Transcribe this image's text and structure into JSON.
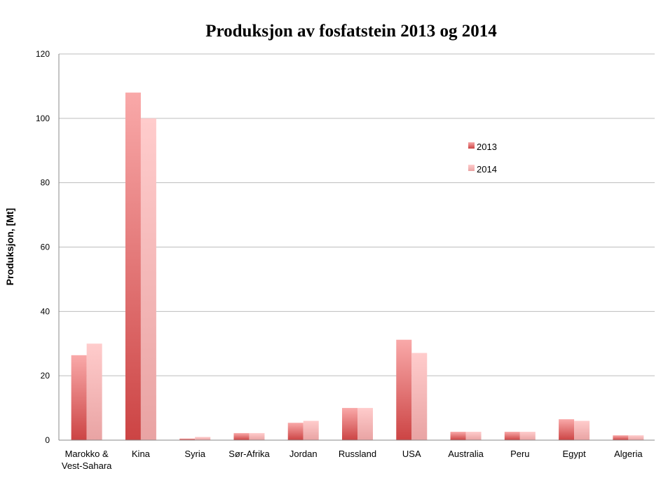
{
  "chart_data": {
    "type": "bar",
    "title": "Produksjon av fosfatstein 2013 og 2014",
    "xlabel": "",
    "ylabel": "Produksjon, [Mt]",
    "ylim": [
      0,
      120
    ],
    "yticks": [
      0,
      20,
      40,
      60,
      80,
      100,
      120
    ],
    "grid": true,
    "legend_position": "top-right",
    "categories": [
      [
        "Marokko &",
        "Vest-Sahara"
      ],
      [
        "Kina"
      ],
      [
        "Syria"
      ],
      [
        "Sør-Afrika"
      ],
      [
        "Jordan"
      ],
      [
        "Russland"
      ],
      [
        "USA"
      ],
      [
        "Australia"
      ],
      [
        "Peru"
      ],
      [
        "Egypt"
      ],
      [
        "Algeria"
      ]
    ],
    "series": [
      {
        "name": "2013",
        "color_top": "#f9a9a9",
        "color_bottom": "#cc4444",
        "values": [
          26.4,
          108,
          0.5,
          2.2,
          5.4,
          10,
          31.2,
          2.6,
          2.6,
          6.5,
          1.5
        ]
      },
      {
        "name": "2014",
        "color_top": "#ffcccc",
        "color_bottom": "#e9a3a3",
        "values": [
          30,
          100,
          1,
          2.2,
          6,
          10,
          27.1,
          2.6,
          2.6,
          6,
          1.5
        ]
      }
    ]
  }
}
